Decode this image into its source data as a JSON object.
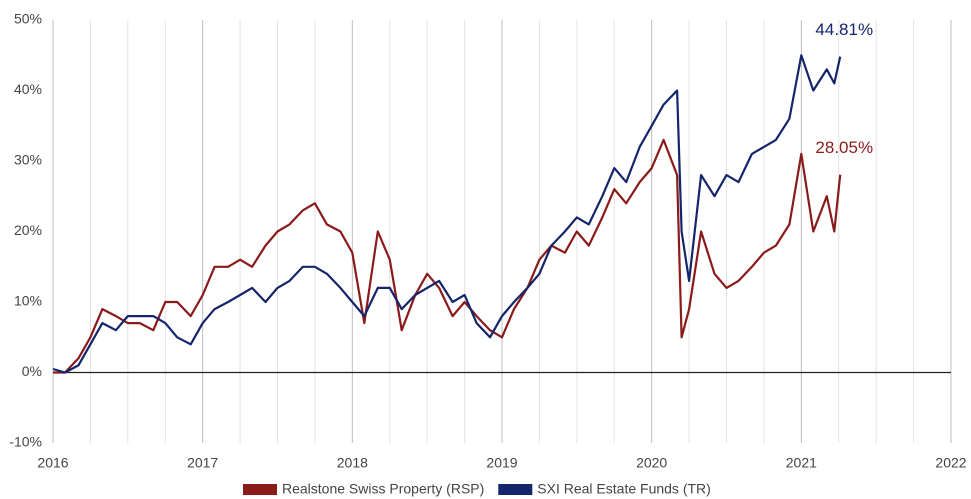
{
  "chart_data": {
    "type": "line",
    "x": [
      2016.0,
      2016.08,
      2016.17,
      2016.25,
      2016.33,
      2016.42,
      2016.5,
      2016.58,
      2016.67,
      2016.75,
      2016.83,
      2016.92,
      2017.0,
      2017.08,
      2017.17,
      2017.25,
      2017.33,
      2017.42,
      2017.5,
      2017.58,
      2017.67,
      2017.75,
      2017.83,
      2017.92,
      2018.0,
      2018.08,
      2018.17,
      2018.25,
      2018.33,
      2018.42,
      2018.5,
      2018.58,
      2018.67,
      2018.75,
      2018.83,
      2018.92,
      2019.0,
      2019.08,
      2019.17,
      2019.25,
      2019.33,
      2019.42,
      2019.5,
      2019.58,
      2019.67,
      2019.75,
      2019.83,
      2019.92,
      2020.0,
      2020.08,
      2020.17,
      2020.2,
      2020.25,
      2020.33,
      2020.42,
      2020.5,
      2020.58,
      2020.67,
      2020.75,
      2020.83,
      2020.92,
      2021.0,
      2021.08,
      2021.17,
      2021.22,
      2021.26
    ],
    "series": [
      {
        "name": "Realstone Swiss Property (RSP)",
        "color": "#8b1a1a",
        "values": [
          0,
          0,
          2,
          5,
          9,
          8,
          7,
          7,
          6,
          10,
          10,
          8,
          11,
          15,
          15,
          16,
          15,
          18,
          20,
          21,
          23,
          24,
          21,
          20,
          17,
          7,
          20,
          16,
          6,
          11,
          14,
          12,
          8,
          10,
          8,
          6,
          5,
          9,
          12,
          16,
          18,
          17,
          20,
          18,
          22,
          26,
          24,
          27,
          29,
          33,
          28,
          5,
          9,
          20,
          14,
          12,
          13,
          15,
          17,
          18,
          21,
          31,
          20,
          25,
          20,
          28.05
        ],
        "value_labels": [
          null,
          null,
          null,
          null,
          null,
          null,
          null,
          null,
          null,
          null,
          null,
          null,
          null,
          null,
          null,
          null,
          null,
          null,
          null,
          null,
          null,
          null,
          null,
          null,
          null,
          null,
          null,
          null,
          null,
          null,
          null,
          null,
          null,
          null,
          null,
          null,
          null,
          null,
          null,
          null,
          null,
          null,
          null,
          null,
          null,
          null,
          null,
          null,
          null,
          null,
          null,
          null,
          null,
          null,
          null,
          null,
          null,
          null,
          null,
          null,
          null,
          null,
          null,
          null,
          null,
          "28.05%"
        ]
      },
      {
        "name": "SXI Real Estate Funds (TR)",
        "color": "#14256b",
        "values": [
          0.5,
          0,
          1,
          4,
          7,
          6,
          8,
          8,
          8,
          7,
          5,
          4,
          7,
          9,
          10,
          11,
          12,
          10,
          12,
          13,
          15,
          15,
          14,
          12,
          10,
          8,
          12,
          12,
          9,
          11,
          12,
          13,
          10,
          11,
          7,
          5,
          8,
          10,
          12,
          14,
          18,
          20,
          22,
          21,
          25,
          29,
          27,
          32,
          35,
          38,
          40,
          20,
          13,
          28,
          25,
          28,
          27,
          31,
          32,
          33,
          36,
          45,
          40,
          43,
          41,
          44.81
        ],
        "value_labels": [
          null,
          null,
          null,
          null,
          null,
          null,
          null,
          null,
          null,
          null,
          null,
          null,
          null,
          null,
          null,
          null,
          null,
          null,
          null,
          null,
          null,
          null,
          null,
          null,
          null,
          null,
          null,
          null,
          null,
          null,
          null,
          null,
          null,
          null,
          null,
          null,
          null,
          null,
          null,
          null,
          null,
          null,
          null,
          null,
          null,
          null,
          null,
          null,
          null,
          null,
          null,
          null,
          null,
          null,
          null,
          null,
          null,
          null,
          null,
          null,
          null,
          null,
          null,
          null,
          null,
          "44.81%"
        ]
      }
    ],
    "xlim": [
      2016,
      2022
    ],
    "xticks": [
      2016,
      2017,
      2018,
      2019,
      2020,
      2021,
      2022
    ],
    "xminorticks": [
      2016.25,
      2016.5,
      2016.75,
      2017.25,
      2017.5,
      2017.75,
      2018.25,
      2018.5,
      2018.75,
      2019.25,
      2019.5,
      2019.75,
      2020.25,
      2020.5,
      2020.75,
      2021.25,
      2021.5,
      2021.75
    ],
    "ylim": [
      -10,
      50
    ],
    "yticks": [
      {
        "value": -10,
        "label": "-10%"
      },
      {
        "value": 0,
        "label": "0%"
      },
      {
        "value": 10,
        "label": "10%"
      },
      {
        "value": 20,
        "label": "20%"
      },
      {
        "value": 30,
        "label": "30%"
      },
      {
        "value": 40,
        "label": "40%"
      },
      {
        "value": 50,
        "label": "50%"
      }
    ],
    "grid": true
  }
}
